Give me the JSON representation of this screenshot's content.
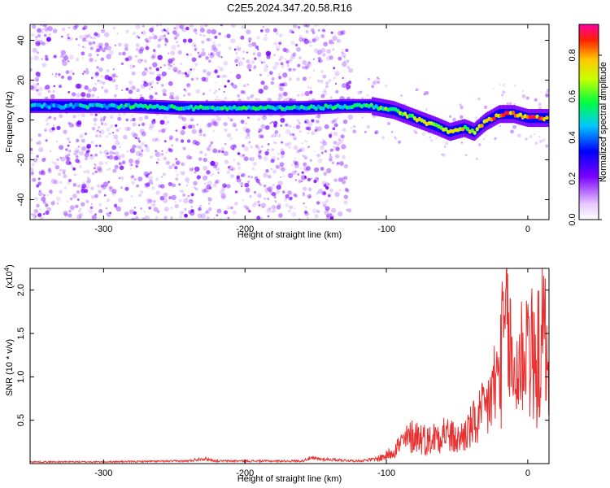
{
  "title": "C2E5.2024.347.20.58.R16",
  "colors": {
    "snr_line": "#e83030",
    "ridge_core": "#ff2020",
    "scatter": "#7a00ff"
  },
  "chart_data": [
    {
      "type": "heatmap",
      "title": "C2E5.2024.347.20.58.R16",
      "xlabel": "Height of straight line (km)",
      "ylabel": "Frequency (Hz)",
      "xlim": [
        -352,
        15
      ],
      "ylim": [
        -50,
        48
      ],
      "xticks": [
        -300,
        -200,
        -100,
        0
      ],
      "yticks": [
        -40,
        -20,
        0,
        20,
        40
      ],
      "colorbar": {
        "label": "Normalized spectral amplitude",
        "range": [
          0,
          0.95
        ],
        "ticks": [
          0.0,
          0.2,
          0.4,
          0.6,
          0.8
        ],
        "tick_labels": [
          "0.0",
          "0.2",
          "0.4",
          "0.6",
          "0.8"
        ]
      },
      "ridge": {
        "x": [
          -352,
          -320,
          -280,
          -240,
          -200,
          -160,
          -130,
          -110,
          -95,
          -80,
          -65,
          -55,
          -45,
          -38,
          -30,
          -20,
          -10,
          0,
          15
        ],
        "y": [
          7,
          7,
          7,
          6,
          6,
          6,
          7,
          7,
          5,
          1,
          -3,
          -6,
          -4,
          -6,
          -1,
          3,
          3,
          1,
          1
        ],
        "amplitude": [
          0.5,
          0.55,
          0.6,
          0.6,
          0.6,
          0.6,
          0.6,
          0.65,
          0.7,
          0.75,
          0.8,
          0.8,
          0.8,
          0.85,
          0.9,
          0.95,
          0.95,
          0.95,
          0.9
        ]
      }
    },
    {
      "type": "line",
      "xlabel": "Height of straight line (km)",
      "ylabel": "SNR (10 * v/v)",
      "multiplier_label": "(x10",
      "multiplier_exp": "4",
      "multiplier_close": ")",
      "xlim": [
        -352,
        15
      ],
      "ylim": [
        0,
        2.25
      ],
      "xticks": [
        -300,
        -200,
        -100,
        0
      ],
      "yticks": [
        0.5,
        1.0,
        1.5,
        2.0
      ],
      "ytick_labels": [
        "0.5",
        "1.0",
        "1.5",
        "2.0"
      ],
      "series": [
        {
          "x": [
            -352,
            -300,
            -240,
            -230,
            -220,
            -200,
            -160,
            -155,
            -120,
            -110,
            -100,
            -90,
            -80,
            -70,
            -60,
            -50,
            -40,
            -30,
            -25,
            -20,
            -15,
            -10,
            -5,
            0,
            5,
            10,
            15
          ],
          "y": [
            0.02,
            0.02,
            0.03,
            0.06,
            0.03,
            0.03,
            0.03,
            0.06,
            0.03,
            0.05,
            0.12,
            0.3,
            0.45,
            0.35,
            0.5,
            0.35,
            0.55,
            0.8,
            1.1,
            1.4,
            2.2,
            1.3,
            1.6,
            2.0,
            1.4,
            1.9,
            1.8
          ]
        }
      ]
    }
  ]
}
